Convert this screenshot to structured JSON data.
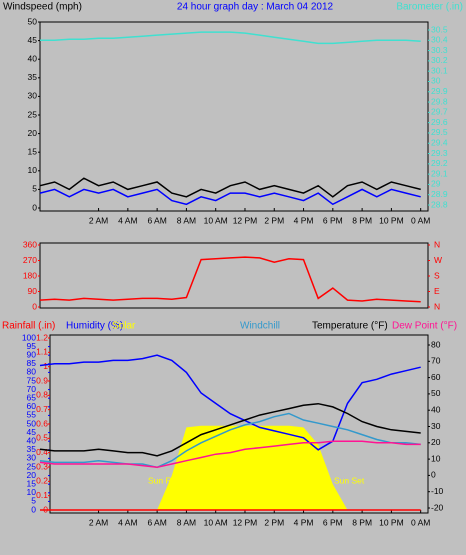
{
  "chart_data": [
    {
      "type": "line",
      "title": "24 hour graph day : March 04 2012",
      "ylabel": "Windspeed (mph)",
      "y2label": "Barometer (.in)",
      "axis_colors": {
        "y": "#000000",
        "y2": "#40e0d0"
      },
      "x": [
        -2,
        -1,
        0,
        1,
        2,
        3,
        4,
        5,
        6,
        7,
        8,
        9,
        10,
        11,
        12,
        13,
        14,
        15,
        16,
        17,
        18,
        19,
        20,
        21,
        22,
        23,
        24
      ],
      "xlim": [
        -2,
        24.5
      ],
      "xticks": [
        {
          "value": 2,
          "label": "2 AM"
        },
        {
          "value": 4,
          "label": "4 AM"
        },
        {
          "value": 6,
          "label": "6 AM"
        },
        {
          "value": 8,
          "label": "8 AM"
        },
        {
          "value": 10,
          "label": "10 AM"
        },
        {
          "value": 12,
          "label": "12 PM"
        },
        {
          "value": 14,
          "label": "2 PM"
        },
        {
          "value": 16,
          "label": "4 PM"
        },
        {
          "value": 18,
          "label": "6 PM"
        },
        {
          "value": 20,
          "label": "8 PM"
        },
        {
          "value": 22,
          "label": "10 PM"
        },
        {
          "value": 24,
          "label": "0 AM"
        }
      ],
      "ylim": [
        0,
        50
      ],
      "yticks": [
        0,
        5,
        10,
        15,
        20,
        25,
        30,
        35,
        40,
        45,
        50
      ],
      "y2lim": [
        28.8,
        30.5
      ],
      "y2ticks": [
        28.8,
        28.9,
        29,
        29.1,
        29.2,
        29.3,
        29.4,
        29.5,
        29.6,
        29.7,
        29.8,
        29.9,
        30,
        30.1,
        30.2,
        30.3,
        30.4,
        30.5
      ],
      "series": [
        {
          "color": "#000000",
          "values": [
            6,
            7,
            5,
            8,
            6,
            7,
            5,
            6,
            7,
            4,
            3,
            5,
            4,
            6,
            7,
            5,
            6,
            5,
            4,
            6,
            3,
            6,
            7,
            5,
            7,
            6,
            5
          ]
        },
        {
          "color": "#0000ff",
          "values": [
            4,
            5,
            3,
            5,
            4,
            5,
            3,
            4,
            5,
            2,
            1,
            3,
            2,
            4,
            4,
            3,
            4,
            3,
            2,
            4,
            1,
            3,
            5,
            3,
            5,
            4,
            3
          ]
        },
        {
          "color": "#40e0d0",
          "axis": "y2",
          "values": [
            30.4,
            30.4,
            30.41,
            30.41,
            30.42,
            30.42,
            30.43,
            30.44,
            30.45,
            30.46,
            30.47,
            30.48,
            30.48,
            30.48,
            30.47,
            30.45,
            30.43,
            30.41,
            30.39,
            30.37,
            30.37,
            30.38,
            30.39,
            30.4,
            30.4,
            30.4,
            30.39
          ]
        }
      ]
    },
    {
      "type": "line",
      "axis_colors": {
        "y": "#ff0000",
        "y2": "#ff0000"
      },
      "x": [
        -2,
        -1,
        0,
        1,
        2,
        3,
        4,
        5,
        6,
        7,
        8,
        9,
        10,
        11,
        12,
        13,
        14,
        15,
        16,
        17,
        18,
        19,
        20,
        21,
        22,
        23,
        24
      ],
      "xlim": [
        -2,
        24.5
      ],
      "ylim": [
        0,
        360
      ],
      "yticks": [
        0,
        90,
        180,
        270,
        360
      ],
      "y2lim": [
        0,
        360
      ],
      "y2ticks": [
        {
          "value": 0,
          "label": "N"
        },
        {
          "value": 90,
          "label": "E"
        },
        {
          "value": 180,
          "label": "S"
        },
        {
          "value": 270,
          "label": "W"
        },
        {
          "value": 360,
          "label": "N"
        }
      ],
      "series": [
        {
          "color": "#ff0000",
          "values": [
            40,
            45,
            40,
            50,
            45,
            40,
            45,
            50,
            50,
            45,
            55,
            275,
            280,
            285,
            290,
            285,
            260,
            280,
            275,
            50,
            110,
            40,
            35,
            45,
            40,
            35,
            30
          ]
        }
      ]
    },
    {
      "type": "line",
      "axis_colors": {
        "y": "#0000ff",
        "y2": "#000000",
        "y3": "#ff0000"
      },
      "annotations": [
        "Sun Rise",
        "Sun Set"
      ],
      "x": [
        -2,
        -1,
        0,
        1,
        2,
        3,
        4,
        5,
        6,
        7,
        8,
        9,
        10,
        11,
        12,
        13,
        14,
        15,
        16,
        17,
        18,
        19,
        20,
        21,
        22,
        23,
        24
      ],
      "xlim": [
        -2,
        24.5
      ],
      "xticks": [
        {
          "value": 2,
          "label": "2 AM"
        },
        {
          "value": 4,
          "label": "4 AM"
        },
        {
          "value": 6,
          "label": "6 AM"
        },
        {
          "value": 8,
          "label": "8 AM"
        },
        {
          "value": 10,
          "label": "10 AM"
        },
        {
          "value": 12,
          "label": "12 PM"
        },
        {
          "value": 14,
          "label": "2 PM"
        },
        {
          "value": 16,
          "label": "4 PM"
        },
        {
          "value": 18,
          "label": "6 PM"
        },
        {
          "value": 20,
          "label": "8 PM"
        },
        {
          "value": 22,
          "label": "10 PM"
        },
        {
          "value": 24,
          "label": "0 AM"
        }
      ],
      "ylim": [
        0,
        100
      ],
      "yticks": [
        0,
        5,
        10,
        15,
        20,
        25,
        30,
        35,
        40,
        45,
        50,
        55,
        60,
        65,
        70,
        75,
        80,
        85,
        90,
        95,
        100
      ],
      "y2lim": [
        -20,
        80
      ],
      "y2ticks": [
        -20,
        -10,
        0,
        10,
        20,
        30,
        40,
        50,
        60,
        70,
        80
      ],
      "y3lim": [
        0,
        1.2
      ],
      "y3ticks": [
        0,
        0.1,
        0.2,
        0.3,
        0.4,
        0.5,
        0.6,
        0.7,
        0.8,
        0.9,
        1,
        1.1,
        1.2
      ],
      "series": [
        {
          "name": "Rainfall (.in)",
          "color": "#ff0000",
          "axis": "y3",
          "values": [
            0,
            0,
            0,
            0,
            0,
            0,
            0,
            0,
            0,
            0,
            0,
            0,
            0,
            0,
            0,
            0,
            0,
            0,
            0,
            0,
            0,
            0,
            0,
            0,
            0,
            0,
            0
          ]
        },
        {
          "name": "Humidity (%)",
          "color": "#0000ff",
          "values": [
            84,
            85,
            85,
            86,
            86,
            87,
            87,
            88,
            90,
            87,
            80,
            68,
            62,
            56,
            52,
            48,
            46,
            44,
            42,
            35,
            40,
            62,
            74,
            76,
            79,
            81,
            83
          ]
        },
        {
          "name": "Solar",
          "color": "#ffff00",
          "fill": true,
          "values": [
            0,
            0,
            0,
            0,
            0,
            0,
            0,
            0,
            0,
            20,
            48,
            49,
            49,
            49,
            49,
            49,
            49,
            49,
            48,
            38,
            15,
            0,
            0,
            0,
            0,
            0,
            0
          ]
        },
        {
          "name": "Windchill",
          "color": "#3399cc",
          "axis": "y2",
          "values": [
            9,
            8,
            8,
            8,
            9,
            8,
            7,
            7,
            5,
            9,
            15,
            20,
            24,
            28,
            31,
            33,
            36,
            38,
            34,
            32,
            30,
            28,
            25,
            22,
            20,
            20,
            19
          ]
        },
        {
          "name": "Temperature (°F)",
          "color": "#000000",
          "axis": "y2",
          "values": [
            16,
            15,
            15,
            15,
            16,
            15,
            14,
            14,
            12,
            15,
            20,
            25,
            28,
            31,
            34,
            37,
            39,
            41,
            43,
            44,
            42,
            38,
            33,
            30,
            28,
            27,
            26
          ]
        },
        {
          "name": "Dew Point (°F)",
          "color": "#ff1493",
          "axis": "y2",
          "values": [
            8,
            7,
            7,
            7,
            7,
            7,
            7,
            6,
            5,
            7,
            9,
            11,
            13,
            14,
            16,
            17,
            18,
            19,
            20,
            20,
            21,
            21,
            21,
            20,
            20,
            19,
            19
          ]
        }
      ]
    }
  ]
}
